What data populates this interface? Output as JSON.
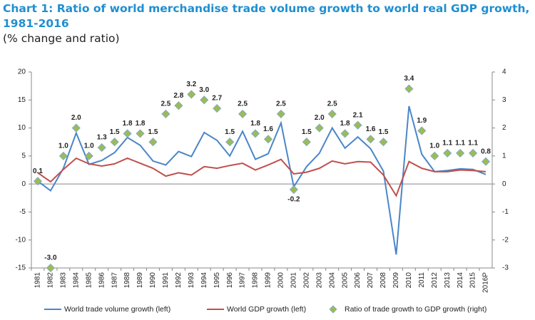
{
  "chart_data": {
    "type": "line",
    "title": "Chart 1: Ratio of world merchandise trade volume growth to world real GDP growth, 1981-2016",
    "subtitle": "(% change and ratio)",
    "categories": [
      "1981",
      "1982",
      "1983",
      "1984",
      "1985",
      "1986",
      "1987",
      "1988",
      "1989",
      "1990",
      "1991",
      "1992",
      "1993",
      "1994",
      "1995",
      "1996",
      "1997",
      "1998",
      "1999",
      "2000",
      "2001",
      "2002",
      "2003",
      "2004",
      "2005",
      "2006",
      "2007",
      "2008",
      "2009",
      "2010",
      "2011",
      "2012",
      "2013",
      "2014",
      "2015",
      "2016P"
    ],
    "series": [
      {
        "name": "World trade volume growth (left)",
        "color": "#4a86c8",
        "marker": "line",
        "axis": "y",
        "values": [
          0.5,
          -1.2,
          2.8,
          9.1,
          3.5,
          4.2,
          5.6,
          8.3,
          6.9,
          4.1,
          3.4,
          5.8,
          4.9,
          9.2,
          7.8,
          5.0,
          9.4,
          4.4,
          5.4,
          10.9,
          -0.5,
          3.1,
          5.5,
          10.0,
          6.4,
          8.4,
          6.3,
          2.3,
          -12.6,
          13.9,
          5.3,
          2.2,
          2.4,
          2.7,
          2.6,
          1.7
        ]
      },
      {
        "name": "World GDP growth (left)",
        "color": "#c0504d",
        "marker": "line",
        "axis": "y",
        "values": [
          2.0,
          0.4,
          2.6,
          4.6,
          3.6,
          3.2,
          3.6,
          4.6,
          3.7,
          2.8,
          1.4,
          2.0,
          1.6,
          3.1,
          2.8,
          3.3,
          3.7,
          2.5,
          3.4,
          4.4,
          1.8,
          2.1,
          2.8,
          4.1,
          3.6,
          4.0,
          3.9,
          1.6,
          -2.1,
          4.0,
          2.8,
          2.2,
          2.2,
          2.5,
          2.4,
          2.2
        ]
      },
      {
        "name": "Ratio of trade growth to GDP growth (right)",
        "color": "#9bbb59",
        "marker": "diamond",
        "axis": "y2",
        "values": [
          0.1,
          -3.0,
          1.0,
          2.0,
          1.0,
          1.3,
          1.5,
          1.8,
          1.8,
          1.5,
          2.5,
          2.8,
          3.2,
          3.0,
          2.7,
          1.5,
          2.5,
          1.8,
          1.6,
          2.5,
          -0.2,
          1.5,
          2.0,
          2.5,
          1.8,
          2.1,
          1.6,
          1.5,
          null,
          3.4,
          1.9,
          1.0,
          1.1,
          1.1,
          1.1,
          0.8
        ],
        "value_labels": [
          "0.1",
          "-3.0",
          "1.0",
          "2.0",
          "1.0",
          "1.3",
          "1.5",
          "1.8",
          "1.8",
          "1.5",
          "2.5",
          "2.8",
          "3.2",
          "3.0",
          "2.7",
          "1.5",
          "2.5",
          "1.8",
          "1.6",
          "2.5",
          "-0.2",
          "1.5",
          "2.0",
          "2.5",
          "1.8",
          "2.1",
          "1.6",
          "1.5",
          null,
          "3.4",
          "1.9",
          "1.0",
          "1.1",
          "1.1",
          "1.1",
          "0.8"
        ]
      }
    ],
    "ylim": [
      -15,
      20
    ],
    "yticks": [
      20,
      15,
      10,
      5,
      0,
      -5,
      -10,
      -15
    ],
    "y2lim": [
      -3,
      4
    ],
    "y2ticks": [
      4,
      3,
      2,
      1,
      0,
      -1,
      -2,
      -3
    ],
    "grid": false,
    "legend": "bottom"
  }
}
